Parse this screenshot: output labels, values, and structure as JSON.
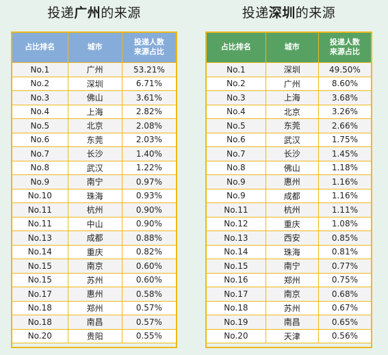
{
  "left": {
    "title_prefix": "投递",
    "title_city": "广州",
    "title_suffix": "的来源",
    "headers": [
      "占比排名",
      "城市",
      "投递人数\n来源占比"
    ],
    "rows": [
      [
        "No.1",
        "广州",
        "53.21%"
      ],
      [
        "No.2",
        "深圳",
        "6.71%"
      ],
      [
        "No.3",
        "佛山",
        "3.61%"
      ],
      [
        "No.4",
        "上海",
        "2.82%"
      ],
      [
        "No.5",
        "北京",
        "2.08%"
      ],
      [
        "No.6",
        "东莞",
        "2.03%"
      ],
      [
        "No.7",
        "长沙",
        "1.40%"
      ],
      [
        "No.8",
        "武汉",
        "1.22%"
      ],
      [
        "No.9",
        "南宁",
        "0.97%"
      ],
      [
        "No.10",
        "珠海",
        "0.93%"
      ],
      [
        "No.11",
        "杭州",
        "0.90%"
      ],
      [
        "No.11",
        "中山",
        "0.90%"
      ],
      [
        "No.13",
        "成都",
        "0.88%"
      ],
      [
        "No.14",
        "重庆",
        "0.82%"
      ],
      [
        "No.15",
        "南京",
        "0.60%"
      ],
      [
        "No.15",
        "苏州",
        "0.60%"
      ],
      [
        "No.17",
        "惠州",
        "0.58%"
      ],
      [
        "No.18",
        "郑州",
        "0.57%"
      ],
      [
        "No.18",
        "南昌",
        "0.57%"
      ],
      [
        "No.20",
        "贵阳",
        "0.55%"
      ]
    ]
  },
  "right": {
    "title_prefix": "投递",
    "title_city": "深圳",
    "title_suffix": "的来源",
    "headers": [
      "占比排名",
      "城市",
      "投递人数\n来源占比"
    ],
    "rows": [
      [
        "No.1",
        "深圳",
        "49.50%"
      ],
      [
        "No.2",
        "广州",
        "8.60%"
      ],
      [
        "No.3",
        "上海",
        "3.68%"
      ],
      [
        "No.4",
        "北京",
        "3.26%"
      ],
      [
        "No.5",
        "东莞",
        "2.66%"
      ],
      [
        "No.6",
        "武汉",
        "1.75%"
      ],
      [
        "No.7",
        "长沙",
        "1.45%"
      ],
      [
        "No.8",
        "佛山",
        "1.18%"
      ],
      [
        "No.9",
        "惠州",
        "1.16%"
      ],
      [
        "No.9",
        "成都",
        "1.16%"
      ],
      [
        "No.11",
        "杭州",
        "1.11%"
      ],
      [
        "No.12",
        "重庆",
        "1.08%"
      ],
      [
        "No.13",
        "西安",
        "0.85%"
      ],
      [
        "No.14",
        "珠海",
        "0.81%"
      ],
      [
        "No.15",
        "南宁",
        "0.77%"
      ],
      [
        "No.16",
        "郑州",
        "0.75%"
      ],
      [
        "No.17",
        "南京",
        "0.68%"
      ],
      [
        "No.18",
        "苏州",
        "0.67%"
      ],
      [
        "No.19",
        "南昌",
        "0.65%"
      ],
      [
        "No.20",
        "天津",
        "0.56%"
      ]
    ]
  },
  "colors": {
    "left_header": "#86acd9",
    "right_header": "#57a263",
    "border": "#f0b81a",
    "background": "#e8f2ec"
  }
}
